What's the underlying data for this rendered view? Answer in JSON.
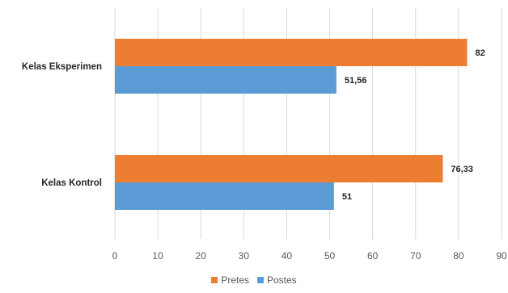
{
  "chart_data": {
    "type": "bar",
    "orientation": "horizontal",
    "categories": [
      "Kelas Eksperimen",
      "Kelas Kontrol"
    ],
    "series": [
      {
        "name": "Pretes",
        "color": "#ED7D31",
        "values": [
          82,
          76.33
        ],
        "labels": [
          "82",
          "76,33"
        ]
      },
      {
        "name": "Postes",
        "color": "#5B9BD5",
        "values": [
          51.56,
          51
        ],
        "labels": [
          "51,56",
          "51"
        ]
      }
    ],
    "xlim": [
      0,
      90
    ],
    "xticks": [
      0,
      10,
      20,
      30,
      40,
      50,
      60,
      70,
      80,
      90
    ],
    "grid": true,
    "legend": "bottom"
  }
}
